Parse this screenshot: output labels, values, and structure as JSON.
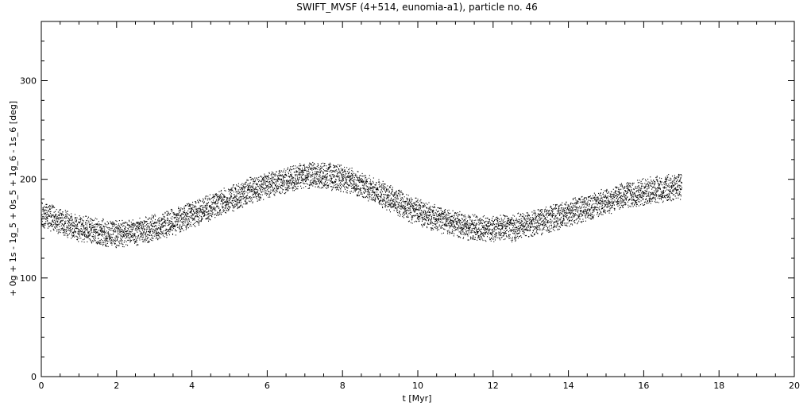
{
  "chart_data": {
    "type": "scatter",
    "title": "SWIFT_MVSF (4+514, eunomia-a1), particle no. 46",
    "xlabel": "t [Myr]",
    "ylabel": "+ 0g + 1s - 1g_5 + 0s_5 + 1g_6 - 1s_6 [deg]",
    "xlim": [
      0,
      20
    ],
    "ylim": [
      0,
      360
    ],
    "x_ticks": [
      "0",
      "2",
      "4",
      "6",
      "8",
      "10",
      "12",
      "14",
      "16",
      "18",
      "20"
    ],
    "y_ticks": [
      "0",
      "100",
      "200",
      "300"
    ],
    "grid": false,
    "marker_color": "#000000",
    "series_mean": {
      "x": [
        0.0,
        0.5,
        1.0,
        1.5,
        2.0,
        2.5,
        3.0,
        3.5,
        4.0,
        4.5,
        5.0,
        5.5,
        6.0,
        6.5,
        7.0,
        7.5,
        8.0,
        8.5,
        9.0,
        9.5,
        10.0,
        10.5,
        11.0,
        11.5,
        12.0,
        12.5,
        13.0,
        13.5,
        14.0,
        14.5,
        15.0,
        15.5,
        16.0,
        16.5,
        17.0
      ],
      "y": [
        165,
        158,
        151,
        147,
        145,
        147,
        151,
        157,
        164,
        172,
        180,
        188,
        195,
        200,
        204,
        204,
        201,
        195,
        186,
        176,
        167,
        160,
        155,
        151,
        150,
        151,
        155,
        160,
        166,
        172,
        178,
        184,
        188,
        191,
        193
      ]
    },
    "scatter_half_width_deg": 14,
    "x_end": 17.0
  }
}
